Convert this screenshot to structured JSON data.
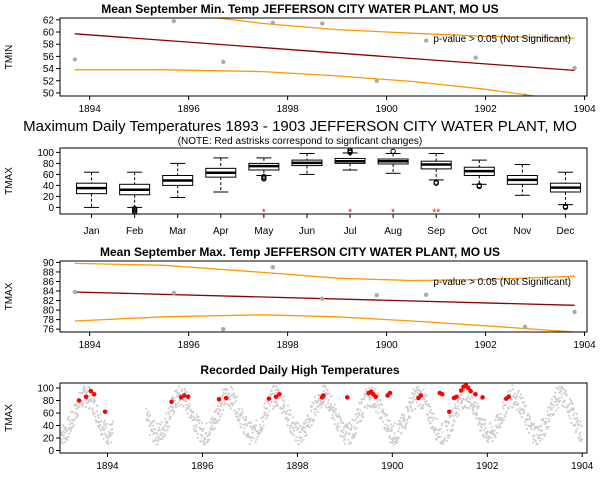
{
  "chart_data": [
    {
      "id": "p1",
      "type": "scatter",
      "title": "Mean September Min. Temp JEFFERSON CITY WATER PLANT, MO US",
      "ylabel": "TMIN",
      "xlim": [
        1893.4,
        1904.05
      ],
      "ylim": [
        49.5,
        62.3
      ],
      "xticks": [
        1894,
        1896,
        1898,
        1900,
        1902,
        1904
      ],
      "yticks": [
        50,
        52,
        54,
        56,
        58,
        60,
        62
      ],
      "annotation": "p-value > 0.05 (Not Significant)",
      "points": [
        [
          1893.7,
          55.5
        ],
        [
          1894.7,
          62.5
        ],
        [
          1895.7,
          61.8
        ],
        [
          1896.7,
          55.1
        ],
        [
          1897.7,
          61.5
        ],
        [
          1898.7,
          61.4
        ],
        [
          1899.8,
          52.0
        ],
        [
          1900.8,
          58.6
        ],
        [
          1901.8,
          55.8
        ],
        [
          1902.8,
          49.6
        ],
        [
          1903.8,
          54.1
        ]
      ],
      "trend": [
        [
          1893.7,
          59.7
        ],
        [
          1903.8,
          53.7
        ]
      ],
      "band_upper": [
        [
          1893.7,
          65.5
        ],
        [
          1895.5,
          63.4
        ],
        [
          1897.5,
          61.4
        ],
        [
          1899.0,
          60.4
        ],
        [
          1900.5,
          59.8
        ],
        [
          1902.0,
          59.3
        ],
        [
          1903.8,
          59.0
        ]
      ],
      "band_lower": [
        [
          1893.7,
          53.8
        ],
        [
          1895.5,
          53.8
        ],
        [
          1897.5,
          53.5
        ],
        [
          1899.0,
          52.8
        ],
        [
          1900.5,
          51.9
        ],
        [
          1902.0,
          50.6
        ],
        [
          1903.8,
          48.6
        ]
      ]
    },
    {
      "id": "p2",
      "type": "box",
      "title": "Maximum Daily Temperatures 1893 - 1903 JEFFERSON CITY WATER PLANT, MO",
      "subtitle": "(NOTE: Red astrisks correspond to signficant changes)",
      "ylabel": "TMAX",
      "ylim": [
        -12,
        108
      ],
      "yticks": [
        0,
        20,
        40,
        60,
        80,
        100
      ],
      "categories": [
        "Jan",
        "Feb",
        "Mar",
        "Apr",
        "May",
        "Jun",
        "Jul",
        "Aug",
        "Sep",
        "Oct",
        "Nov",
        "Dec"
      ],
      "boxes": [
        {
          "low": 0,
          "q1": 25,
          "med": 35,
          "q3": 44,
          "high": 64,
          "outliers": []
        },
        {
          "low": 0,
          "q1": 23,
          "med": 32,
          "q3": 42,
          "high": 64,
          "outliers": [
            -2,
            -4,
            -6,
            -8
          ]
        },
        {
          "low": 18,
          "q1": 40,
          "med": 49,
          "q3": 58,
          "high": 80,
          "outliers": []
        },
        {
          "low": 28,
          "q1": 55,
          "med": 63,
          "q3": 71,
          "high": 90,
          "outliers": []
        },
        {
          "low": 58,
          "q1": 68,
          "med": 75,
          "q3": 80,
          "high": 90,
          "outliers": [
            52,
            54,
            56
          ]
        },
        {
          "low": 60,
          "q1": 76,
          "med": 81,
          "q3": 86,
          "high": 98,
          "outliers": []
        },
        {
          "low": 68,
          "q1": 80,
          "med": 84,
          "q3": 89,
          "high": 99,
          "outliers": [
            100,
            102,
            104
          ]
        },
        {
          "low": 62,
          "q1": 79,
          "med": 84,
          "q3": 88,
          "high": 98,
          "outliers": [
            102
          ]
        },
        {
          "low": 50,
          "q1": 70,
          "med": 78,
          "q3": 84,
          "high": 98,
          "outliers": [
            44,
            46
          ]
        },
        {
          "low": 42,
          "q1": 58,
          "med": 66,
          "q3": 73,
          "high": 86,
          "outliers": [
            38,
            40
          ]
        },
        {
          "low": 22,
          "q1": 42,
          "med": 50,
          "q3": 58,
          "high": 78,
          "outliers": []
        },
        {
          "low": 5,
          "q1": 28,
          "med": 36,
          "q3": 44,
          "high": 64,
          "outliers": [
            0,
            2
          ]
        }
      ],
      "significant_marks": [
        "",
        "",
        "",
        "",
        "*",
        "",
        "*",
        "*",
        "**",
        "",
        "",
        ""
      ]
    },
    {
      "id": "p3",
      "type": "scatter",
      "title": "Mean September Max. Temp JEFFERSON CITY WATER PLANT, MO US",
      "ylabel": "TMAX",
      "xlim": [
        1893.4,
        1904.05
      ],
      "ylim": [
        75.4,
        90.3
      ],
      "xticks": [
        1894,
        1896,
        1898,
        1900,
        1902,
        1904
      ],
      "yticks": [
        76,
        78,
        80,
        82,
        84,
        86,
        88,
        90
      ],
      "annotation": "p-value > 0.05 (Not Significant)",
      "points": [
        [
          1893.7,
          83.8
        ],
        [
          1894.7,
          91.0
        ],
        [
          1895.7,
          83.6
        ],
        [
          1896.7,
          76.0
        ],
        [
          1897.7,
          89.0
        ],
        [
          1898.7,
          82.4
        ],
        [
          1899.8,
          83.1
        ],
        [
          1900.8,
          83.2
        ],
        [
          1901.8,
          91.0
        ],
        [
          1902.8,
          76.5
        ],
        [
          1903.8,
          79.6
        ]
      ],
      "trend": [
        [
          1893.7,
          83.8
        ],
        [
          1903.8,
          81.0
        ]
      ],
      "band_upper": [
        [
          1893.7,
          89.8
        ],
        [
          1895.5,
          89.4
        ],
        [
          1897.5,
          87.9
        ],
        [
          1899.0,
          86.7
        ],
        [
          1900.5,
          86.2
        ],
        [
          1902.0,
          86.4
        ],
        [
          1903.8,
          87.1
        ]
      ],
      "band_lower": [
        [
          1893.7,
          77.7
        ],
        [
          1895.5,
          78.6
        ],
        [
          1897.5,
          79.0
        ],
        [
          1899.0,
          78.6
        ],
        [
          1900.5,
          77.7
        ],
        [
          1902.0,
          76.7
        ],
        [
          1903.8,
          75.4
        ]
      ]
    },
    {
      "id": "p4",
      "type": "scatter",
      "title": "Recorded Daily High Temperatures",
      "ylabel": "TMAX",
      "xlim": [
        1893.0,
        1904.1
      ],
      "ylim": [
        -4,
        108
      ],
      "xticks": [
        1894,
        1896,
        1898,
        1900,
        1902,
        1904
      ],
      "yticks": [
        0,
        20,
        40,
        60,
        80,
        100
      ],
      "data_gap": [
        1894.1,
        1894.8
      ],
      "series": [
        {
          "name": "",
          "color": "#cccccc",
          "model": "seasonal"
        },
        {
          "name": "",
          "color": "#ff0000",
          "points": [
            [
              1893.4,
              80
            ],
            [
              1893.55,
              86
            ],
            [
              1893.65,
              95
            ],
            [
              1893.72,
              90
            ],
            [
              1893.95,
              62
            ],
            [
              1895.35,
              78
            ],
            [
              1895.55,
              85
            ],
            [
              1895.62,
              88
            ],
            [
              1895.7,
              86
            ],
            [
              1896.35,
              82
            ],
            [
              1896.5,
              84
            ],
            [
              1897.4,
              83
            ],
            [
              1897.55,
              86
            ],
            [
              1897.62,
              90
            ],
            [
              1898.52,
              85
            ],
            [
              1898.55,
              88
            ],
            [
              1899.05,
              85
            ],
            [
              1899.5,
              92
            ],
            [
              1899.55,
              94
            ],
            [
              1899.6,
              90
            ],
            [
              1899.65,
              86
            ],
            [
              1899.9,
              88
            ],
            [
              1899.95,
              92
            ],
            [
              1900.55,
              84
            ],
            [
              1900.6,
              88
            ],
            [
              1901.0,
              92
            ],
            [
              1901.05,
              90
            ],
            [
              1901.3,
              84
            ],
            [
              1901.35,
              86
            ],
            [
              1901.45,
              96
            ],
            [
              1901.5,
              102
            ],
            [
              1901.55,
              104
            ],
            [
              1901.6,
              100
            ],
            [
              1901.65,
              95
            ],
            [
              1901.75,
              90
            ],
            [
              1901.9,
              85
            ],
            [
              1901.2,
              62
            ],
            [
              1902.4,
              83
            ],
            [
              1902.45,
              86
            ]
          ]
        }
      ]
    }
  ]
}
